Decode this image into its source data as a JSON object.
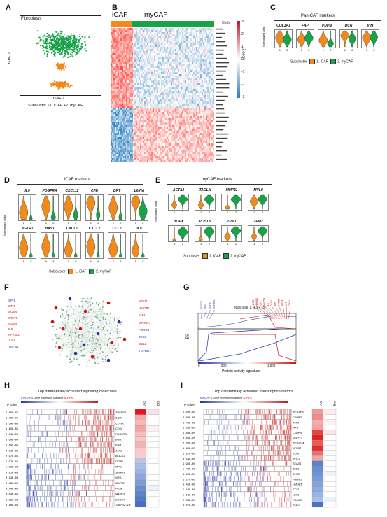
{
  "panels": {
    "A": {
      "label": "A",
      "title": "Fibroblasts",
      "xlabel": "tSNE-1",
      "ylabel": "tSNE-2",
      "legend_title": "Subcluster",
      "legend": [
        "1. iCAF",
        "2. myCAF"
      ]
    },
    "B": {
      "label": "B",
      "col_groups": [
        "iCAF",
        "myCAF"
      ],
      "cells_label": "Cells",
      "zscore_label": "Z-score",
      "scale_ticks": [
        "3",
        "2",
        "1",
        "0",
        "-1",
        "-2",
        "-3"
      ]
    },
    "C": {
      "label": "C",
      "title": "Pan-CAF markers",
      "genes": [
        "COL1A1",
        "FAP",
        "PDPN",
        "DCN",
        "VIM"
      ],
      "ylabel": "Normalized data",
      "legend_title": "Subcluster",
      "legend": [
        "1. iCAF",
        "2. myCAF"
      ],
      "ticks": [
        "1",
        "2"
      ]
    },
    "D": {
      "label": "D",
      "title": "iCAF markers",
      "genes_top": [
        "IL6",
        "PDGFRA",
        "CXCL12",
        "CFD",
        "DPT",
        "LMNA"
      ],
      "genes_bottom": [
        "AGTR1",
        "HAS1",
        "CXCL1",
        "CXCL2",
        "CCL2",
        "IL8"
      ],
      "ylabel": "Normalized data",
      "legend_title": "Subcluster",
      "legend": [
        "1. iCAF",
        "2. myCAF"
      ],
      "ticks": [
        "1",
        "2"
      ]
    },
    "E": {
      "label": "E",
      "title": "myCAF markers",
      "genes_top": [
        "ACTA2",
        "TAGLN",
        "MMP11",
        "MYL9"
      ],
      "genes_bottom": [
        "HOPX",
        "POSTN",
        "TPM1",
        "TPM2"
      ],
      "ylabel": "Normalized data",
      "legend_title": "Subcluster",
      "legend": [
        "1. iCAF",
        "2. myCAF"
      ],
      "ticks": [
        "1",
        "2"
      ]
    },
    "F": {
      "label": "F",
      "left_labels": [
        "SPI1",
        "ILTR",
        "SOX4",
        "STAT5",
        "CDX4",
        "IL6",
        "NFKBIZ",
        "JUN",
        "TGFB1"
      ],
      "right_labels": [
        "NFKB1",
        "HMGB1",
        "IGF1",
        "WNT5A",
        "FOXO3",
        "ZEB1",
        "CCL2",
        "TGFBR1"
      ],
      "left_colors": [
        "#2233aa",
        "#cc1111",
        "#cc1111",
        "#cc1111",
        "#cc1111",
        "#cc1111",
        "#cc1111",
        "#cc1111",
        "#2233aa"
      ],
      "right_colors": [
        "#cc1111",
        "#cc1111",
        "#cc1111",
        "#cc1111",
        "#2233aa",
        "#2233aa",
        "#cc1111",
        "#2233aa"
      ]
    },
    "G": {
      "label": "G",
      "nes_text": "NES 4.66, p: 4.3 × 10⁻⁶",
      "ylabel": "ES",
      "xlabel": "Protein activity signature",
      "xticks": [
        "0",
        "500",
        "1,000"
      ],
      "blue_genes": [
        "FOXO3",
        "ZEB1",
        "TGFB1",
        "TGFBR1"
      ],
      "red_genes": [
        "NFKB1",
        "HMGB1",
        "IGF1",
        "WNT5A",
        "IL6",
        "CCL2",
        "JUN",
        "STAT5",
        "SOX4",
        "ILTR",
        "CDX4"
      ]
    },
    "H": {
      "label": "H",
      "title": "Top differentially activated signaling molecules",
      "legend_left": "myCAFs",
      "legend_mid": "Gene expression signature",
      "legend_right": "iCAFs",
      "pcol": "P value",
      "col_act": "Act",
      "col_exp": "Exp",
      "pvalues": [
        "4.89E-05",
        "3.79E-05",
        "1.30E-05",
        "1.19E-05",
        "2.64E-05",
        "5.60E-04",
        "1.15E-05",
        "2.31E-06",
        "2.17E-05",
        "5.97E-05",
        "5.33E-06",
        "2.91E-05",
        "3.23E-06",
        "3.09E-05",
        "5.74E-06",
        "4.64E-05",
        "3.38E-06",
        "3.10E-06"
      ],
      "genes": [
        "TGFBR3",
        "IL1R1",
        "CD7ex",
        "CD44",
        "PDGFRB",
        "EGR1",
        "IGF1",
        "JAK1",
        "BCL2L1",
        "ITGB1",
        "MPC1",
        "SMAD3",
        "NRG1",
        "MAPK1",
        "FOSB",
        "MAPK3",
        "SOCS4",
        "TNFRSF11B"
      ]
    },
    "I": {
      "label": "I",
      "title": "Top differentially activated transcription factors",
      "legend_left": "myCAFs",
      "legend_mid": "Gene expression signature",
      "legend_right": "iCAFs",
      "pcol": "P value",
      "col_act": "Act",
      "col_exp": "Exp",
      "pvalues": [
        "1.07E-05",
        "2.62E-05",
        "1.46E-05",
        "6.38E-05",
        "6.88E-05",
        "3.83E-05",
        "7.38E-06",
        "1.66E-05",
        "1.37E-05",
        "3.54E-05",
        "1.91E-05",
        "5.46E-05",
        "1.32E-05",
        "1.17E-05",
        "1.41E-05",
        "5.44E-06",
        "5.11E-06",
        "2.34E-06",
        "1.57E-05"
      ],
      "genes": [
        "ZC3HAV1",
        "CEBPD",
        "ATF3",
        "IRF1",
        "CEBPB",
        "NFE2L2",
        "ZC3H12A",
        "NFKB2",
        "KLF6",
        "NFIL3",
        "TEAD1",
        "ZEB1",
        "GLIS3",
        "PRDM1",
        "HMGB1",
        "ETS1",
        "LEF1",
        "FOXO3",
        "TCF21"
      ]
    }
  }
}
